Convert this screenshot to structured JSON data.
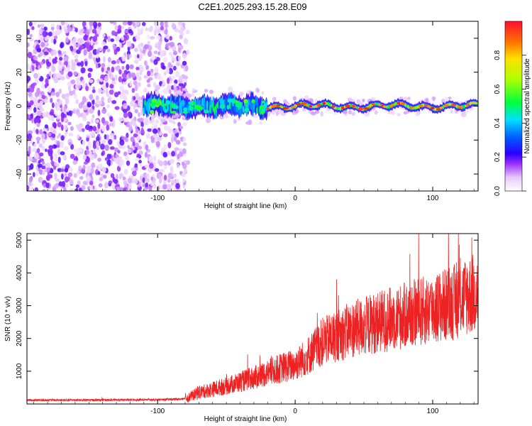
{
  "title": "C2E1.2025.293.15.28.E09",
  "chart_data": [
    {
      "type": "heatmap",
      "title": "C2E1.2025.293.15.28.E09",
      "xlabel": "Height of straight line (km)",
      "ylabel": "Frequency (Hz)",
      "xlim": [
        -195,
        133
      ],
      "ylim": [
        -50,
        50
      ],
      "x_ticks": [
        -100,
        0,
        100
      ],
      "y_ticks": [
        -40,
        -20,
        0,
        20,
        40
      ],
      "colorbar": {
        "label": "Normalized spectral amplitude",
        "range": [
          0,
          1
        ],
        "ticks": [
          0.0,
          0.2,
          0.4,
          0.6,
          0.8
        ]
      },
      "description_of_data": {
        "noise_region_x": [
          -195,
          -80
        ],
        "signal_start_x": -110,
        "signal_center_freq": 0
      }
    },
    {
      "type": "line",
      "xlabel": "Height of straight line (km)",
      "ylabel": "SNR (10 * v/v)",
      "xlim": [
        -195,
        133
      ],
      "ylim": [
        0,
        5200
      ],
      "x_ticks": [
        -100,
        0,
        100
      ],
      "y_ticks": [
        1000,
        2000,
        3000,
        4000,
        5000
      ],
      "series": [
        {
          "name": "SNR",
          "color": "#ee2222",
          "trend_points": {
            "x": [
              -195,
              -150,
              -100,
              -80,
              -70,
              -50,
              -30,
              -10,
              0,
              10,
              20,
              40,
              60,
              80,
              100,
              115,
              125,
              133
            ],
            "y": [
              120,
              120,
              130,
              150,
              350,
              550,
              800,
              1100,
              1200,
              1500,
              1900,
              2250,
              2500,
              2700,
              2900,
              3100,
              3300,
              3400
            ]
          }
        }
      ]
    }
  ]
}
